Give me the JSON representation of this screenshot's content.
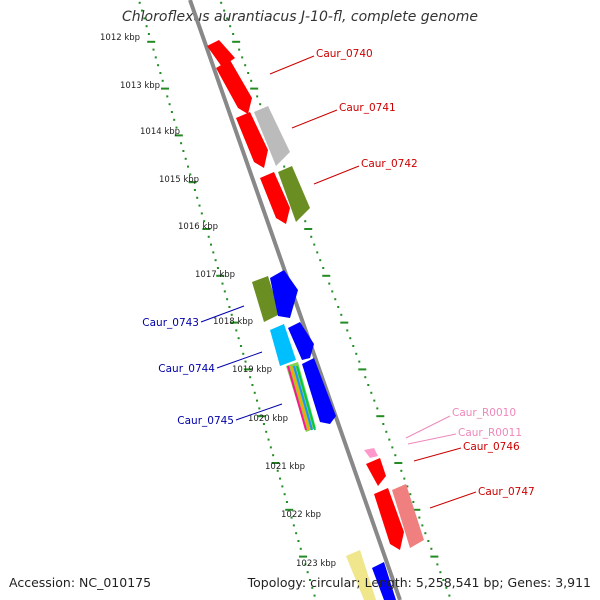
{
  "title": "Chloroflexus aurantiacus J-10-fl, complete genome",
  "footer": {
    "accession": "Accession: NC_010175",
    "summary": "Topology: circular; Length: 5,258,541 bp; Genes: 3,911"
  },
  "scale": {
    "ticks": [
      "1012 kbp",
      "1013 kbp",
      "1014 kbp",
      "1015 kbp",
      "1016 kbp",
      "1017 kbp",
      "1018 kbp",
      "1019 kbp",
      "1020 kbp",
      "1021 kbp",
      "1022 kbp",
      "1023 kbp"
    ]
  },
  "colors": {
    "forward_red": "#ff0000",
    "gray": "#bbbbbb",
    "olive": "#6b8e23",
    "blue": "#0000ff",
    "cyan": "#00bfff",
    "pink": "#ff99cc",
    "salmon": "#f08080",
    "track_line": "#888888",
    "dots": "#228b22"
  },
  "genes": [
    {
      "name": "Caur_0740",
      "color": "#cc0000"
    },
    {
      "name": "Caur_0741",
      "color": "#cc0000"
    },
    {
      "name": "Caur_0742",
      "color": "#cc0000"
    },
    {
      "name": "Caur_0743",
      "color": "#0000aa"
    },
    {
      "name": "Caur_0744",
      "color": "#0000aa"
    },
    {
      "name": "Caur_0745",
      "color": "#0000aa"
    },
    {
      "name": "Caur_R0010",
      "color": "#ee88bb"
    },
    {
      "name": "Caur_R0011",
      "color": "#ee88bb"
    },
    {
      "name": "Caur_0746",
      "color": "#cc0000"
    },
    {
      "name": "Caur_0747",
      "color": "#cc0000"
    }
  ]
}
